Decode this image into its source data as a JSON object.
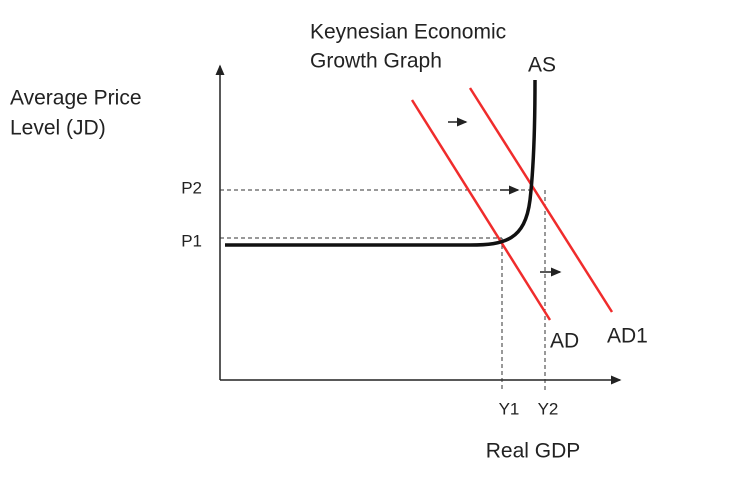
{
  "title": [
    "Keynesian Economic",
    "Growth Graph"
  ],
  "y_axis_label": [
    "Average Price",
    "Level (JD)"
  ],
  "x_axis_label": "Real GDP",
  "curves": {
    "as": "AS",
    "ad": "AD",
    "ad1": "AD1"
  },
  "price_levels": [
    "P2",
    "P1"
  ],
  "outputs": [
    "Y1",
    "Y2"
  ]
}
